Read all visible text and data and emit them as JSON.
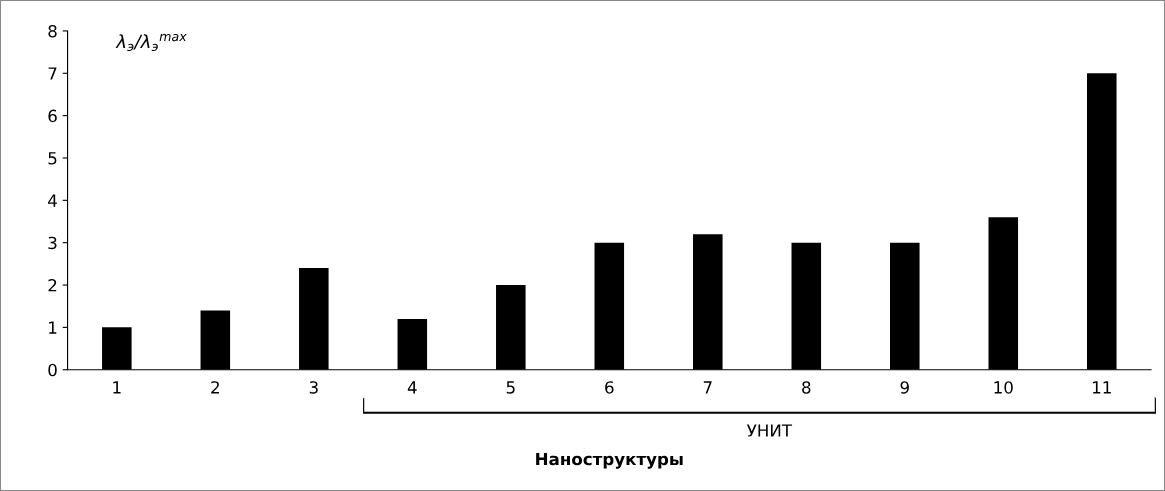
{
  "chart_data": {
    "type": "bar",
    "xlabel": "Наноструктуры",
    "ylabel": "λ$_{э}$/λ$_{э}$$^{max}$",
    "categories": [
      "1",
      "2",
      "3",
      "4",
      "5",
      "6",
      "7",
      "8",
      "9",
      "10",
      "11"
    ],
    "values": [
      1,
      1.4,
      2.4,
      1.2,
      2,
      3,
      3.2,
      3,
      3,
      3.6,
      7
    ],
    "color": "#000000",
    "ylim": [
      0,
      8
    ],
    "yticks": [
      0,
      1,
      2,
      3,
      4,
      5,
      6,
      7,
      8
    ],
    "grid": false,
    "legend": false,
    "annotations": [
      "УНИТ"
    ]
  }
}
